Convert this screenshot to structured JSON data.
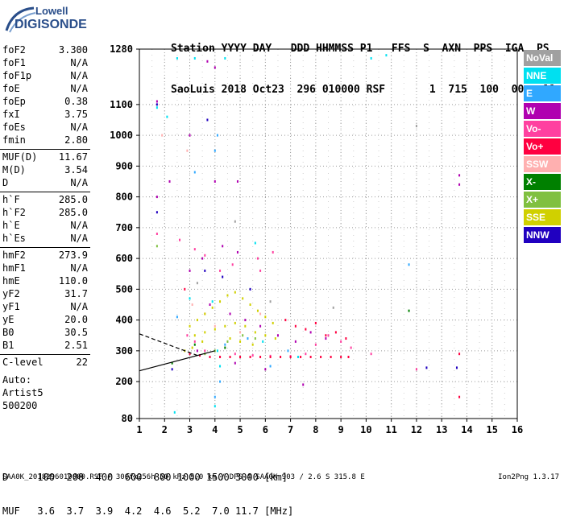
{
  "logo": {
    "top": "Lowell",
    "main": "DIGISONDE"
  },
  "header": {
    "line1": "Station YYYY DAY   DDD HHMMSS P1   FFS  S  AXN  PPS  IGA  PS",
    "line2": "SaoLuis 2018 Oct23  296 010000 RSF       1  715  100  00-  11"
  },
  "scaled_params": [
    {
      "k": "foF2",
      "v": "3.300"
    },
    {
      "k": "foF1",
      "v": "N/A"
    },
    {
      "k": "foF1p",
      "v": "N/A"
    },
    {
      "k": "foE",
      "v": "N/A"
    },
    {
      "k": "foEp",
      "v": "0.38"
    },
    {
      "k": "fxI",
      "v": "3.75"
    },
    {
      "k": "foEs",
      "v": "N/A"
    },
    {
      "k": "fmin",
      "v": "2.80"
    },
    {
      "k": "MUF(D)",
      "v": "11.67"
    },
    {
      "k": "M(D)",
      "v": "3.54"
    },
    {
      "k": "D",
      "v": "N/A"
    },
    {
      "k": "h`F",
      "v": "285.0"
    },
    {
      "k": "h`F2",
      "v": "285.0"
    },
    {
      "k": "h`E",
      "v": "N/A"
    },
    {
      "k": "h`Es",
      "v": "N/A"
    },
    {
      "k": "hmF2",
      "v": "273.9"
    },
    {
      "k": "hmF1",
      "v": "N/A"
    },
    {
      "k": "hmE",
      "v": "110.0"
    },
    {
      "k": "yF2",
      "v": "31.7"
    },
    {
      "k": "yF1",
      "v": "N/A"
    },
    {
      "k": "yE",
      "v": "20.0"
    },
    {
      "k": "B0",
      "v": "30.5"
    },
    {
      "k": "B1",
      "v": "2.51"
    },
    {
      "k": "C-level",
      "v": "22"
    }
  ],
  "auto_block": {
    "line1": "Auto:",
    "line2": "Artist5",
    "line3": "500200"
  },
  "legend": [
    {
      "label": "NoVal",
      "color": "#a0a0a0"
    },
    {
      "label": "NNE",
      "color": "#00e0f0"
    },
    {
      "label": "E",
      "color": "#30a8ff"
    },
    {
      "label": "W",
      "color": "#b000b0"
    },
    {
      "label": "Vo-",
      "color": "#ff40a0"
    },
    {
      "label": "Vo+",
      "color": "#ff0040"
    },
    {
      "label": "SSW",
      "color": "#ffb0b0"
    },
    {
      "label": "X-",
      "color": "#008000"
    },
    {
      "label": "X+",
      "color": "#80c040"
    },
    {
      "label": "SSE",
      "color": "#d0d000"
    },
    {
      "label": "NNW",
      "color": "#2000c0"
    }
  ],
  "muf_table": {
    "line1": "D     100  200  400  600  800 1000 1500 3000 [km]",
    "line2": "MUF   3.6  3.7  3.9  4.2  4.6  5.2  7.0 11.7 [MHz]"
  },
  "footer": {
    "left": "SAA0K_2018296010000.RSF / 300fx256h 50 kHz 5.0 km / DPS-4 SAA0K 903 / 2.6 S 315.8 E",
    "right": "Ion2Png 1.3.17"
  },
  "chart_data": {
    "type": "scatter",
    "title": "",
    "xlabel": "",
    "ylabel": "",
    "x_ticks": [
      1,
      2,
      3,
      4,
      5,
      6,
      7,
      8,
      9,
      10,
      11,
      12,
      13,
      14,
      15,
      16
    ],
    "y_ticks": [
      80,
      200,
      300,
      400,
      500,
      600,
      700,
      800,
      900,
      1000,
      1100,
      1280
    ],
    "xlim": [
      1,
      16
    ],
    "ylim": [
      80,
      1280
    ],
    "grid": true,
    "series": [
      {
        "name": "NNE",
        "color": "#00e0f0",
        "points": [
          [
            1.7,
            1090
          ],
          [
            2.1,
            1060
          ],
          [
            2.5,
            1250
          ],
          [
            3.2,
            1250
          ],
          [
            4.4,
            1250
          ],
          [
            10.2,
            1250
          ],
          [
            10.8,
            1260
          ],
          [
            3.0,
            470
          ],
          [
            4.1,
            300
          ],
          [
            4.2,
            250
          ],
          [
            4.0,
            120
          ],
          [
            2.4,
            100
          ],
          [
            3.9,
            460
          ],
          [
            5.6,
            650
          ],
          [
            5.9,
            330
          ],
          [
            7.3,
            280
          ]
        ]
      },
      {
        "name": "E",
        "color": "#30a8ff",
        "points": [
          [
            4.0,
            950
          ],
          [
            4.1,
            1000
          ],
          [
            3.2,
            880
          ],
          [
            2.5,
            410
          ],
          [
            6.9,
            300
          ],
          [
            11.7,
            580
          ],
          [
            4.0,
            150
          ],
          [
            4.2,
            200
          ],
          [
            4.4,
            320
          ],
          [
            5.3,
            340
          ],
          [
            6.2,
            250
          ]
        ]
      },
      {
        "name": "W",
        "color": "#b000b0",
        "points": [
          [
            3.7,
            1240
          ],
          [
            1.7,
            1110
          ],
          [
            3.0,
            1000
          ],
          [
            4.0,
            1220
          ],
          [
            1.7,
            800
          ],
          [
            2.2,
            850
          ],
          [
            4.0,
            850
          ],
          [
            4.9,
            850
          ],
          [
            13.7,
            870
          ],
          [
            13.7,
            840
          ],
          [
            3.0,
            560
          ],
          [
            3.5,
            600
          ],
          [
            4.3,
            640
          ],
          [
            4.9,
            620
          ],
          [
            3.8,
            450
          ],
          [
            4.6,
            420
          ],
          [
            5.2,
            400
          ],
          [
            5.8,
            380
          ],
          [
            6.5,
            350
          ],
          [
            7.2,
            330
          ],
          [
            7.8,
            360
          ],
          [
            8.4,
            340
          ],
          [
            3.3,
            300
          ],
          [
            4.8,
            260
          ],
          [
            6.0,
            240
          ],
          [
            7.5,
            190
          ]
        ]
      },
      {
        "name": "Vo-",
        "color": "#ff40a0",
        "points": [
          [
            1.7,
            680
          ],
          [
            2.6,
            660
          ],
          [
            3.2,
            630
          ],
          [
            3.6,
            610
          ],
          [
            4.2,
            560
          ],
          [
            4.7,
            580
          ],
          [
            5.7,
            600
          ],
          [
            5.8,
            560
          ],
          [
            6.3,
            620
          ],
          [
            2.9,
            350
          ],
          [
            3.2,
            330
          ],
          [
            3.6,
            300
          ],
          [
            4.2,
            280
          ],
          [
            4.8,
            290
          ],
          [
            5.5,
            285
          ],
          [
            6.2,
            283
          ],
          [
            7.0,
            282
          ],
          [
            7.6,
            290
          ],
          [
            8.0,
            320
          ],
          [
            8.5,
            350
          ],
          [
            9.0,
            330
          ],
          [
            9.4,
            310
          ],
          [
            10.2,
            290
          ],
          [
            12.0,
            240
          ]
        ]
      },
      {
        "name": "Vo+",
        "color": "#ff0040",
        "points": [
          [
            3.0,
            290
          ],
          [
            3.4,
            285
          ],
          [
            3.8,
            280
          ],
          [
            4.2,
            280
          ],
          [
            4.6,
            280
          ],
          [
            5.0,
            280
          ],
          [
            5.4,
            280
          ],
          [
            5.8,
            280
          ],
          [
            6.2,
            280
          ],
          [
            6.6,
            280
          ],
          [
            7.0,
            280
          ],
          [
            7.4,
            280
          ],
          [
            7.8,
            280
          ],
          [
            8.2,
            280
          ],
          [
            8.6,
            280
          ],
          [
            9.0,
            280
          ],
          [
            9.3,
            280
          ],
          [
            6.8,
            400
          ],
          [
            7.2,
            380
          ],
          [
            7.6,
            370
          ],
          [
            8.0,
            390
          ],
          [
            8.4,
            350
          ],
          [
            8.8,
            360
          ],
          [
            9.2,
            340
          ],
          [
            13.7,
            290
          ],
          [
            13.7,
            150
          ],
          [
            2.8,
            500
          ]
        ]
      },
      {
        "name": "SSW",
        "color": "#ffb0b0",
        "points": [
          [
            1.9,
            1000
          ],
          [
            2.9,
            950
          ],
          [
            3.1,
            450
          ],
          [
            3.6,
            420
          ],
          [
            4.0,
            380
          ],
          [
            5.0,
            360
          ],
          [
            5.8,
            420
          ]
        ]
      },
      {
        "name": "X-",
        "color": "#008000",
        "points": [
          [
            11.7,
            430
          ],
          [
            3.2,
            320
          ],
          [
            2.3,
            260
          ],
          [
            4.4,
            310
          ]
        ]
      },
      {
        "name": "X+",
        "color": "#80c040",
        "points": [
          [
            1.7,
            640
          ],
          [
            3.6,
            290
          ],
          [
            4.0,
            300
          ],
          [
            4.5,
            330
          ],
          [
            5.1,
            350
          ],
          [
            5.6,
            340
          ]
        ]
      },
      {
        "name": "SSE",
        "color": "#d0d000",
        "points": [
          [
            3.0,
            380
          ],
          [
            3.3,
            400
          ],
          [
            3.6,
            420
          ],
          [
            3.9,
            440
          ],
          [
            4.2,
            460
          ],
          [
            4.5,
            480
          ],
          [
            4.8,
            490
          ],
          [
            5.1,
            470
          ],
          [
            5.4,
            450
          ],
          [
            5.7,
            430
          ],
          [
            6.0,
            410
          ],
          [
            6.3,
            390
          ],
          [
            3.2,
            350
          ],
          [
            3.6,
            360
          ],
          [
            4.0,
            370
          ],
          [
            4.4,
            380
          ],
          [
            4.8,
            390
          ],
          [
            5.2,
            380
          ],
          [
            5.6,
            360
          ],
          [
            6.0,
            350
          ],
          [
            6.4,
            340
          ],
          [
            2.8,
            300
          ],
          [
            3.1,
            310
          ],
          [
            3.5,
            330
          ],
          [
            4.6,
            340
          ],
          [
            5.0,
            330
          ],
          [
            5.5,
            320
          ]
        ]
      },
      {
        "name": "NNW",
        "color": "#2000c0",
        "points": [
          [
            1.7,
            1100
          ],
          [
            3.7,
            1050
          ],
          [
            1.7,
            750
          ],
          [
            3.6,
            560
          ],
          [
            4.3,
            540
          ],
          [
            5.4,
            500
          ],
          [
            12.4,
            245
          ],
          [
            13.6,
            245
          ],
          [
            2.3,
            240
          ]
        ]
      },
      {
        "name": "NoVal",
        "color": "#a0a0a0",
        "points": [
          [
            12.0,
            1030
          ],
          [
            4.8,
            720
          ],
          [
            3.3,
            520
          ],
          [
            6.2,
            460
          ],
          [
            8.7,
            440
          ]
        ]
      }
    ],
    "trace_lines": [
      {
        "style": "dashed",
        "points": [
          [
            1.0,
            355
          ],
          [
            3.3,
            285
          ]
        ]
      },
      {
        "style": "solid",
        "points": [
          [
            1.0,
            235
          ],
          [
            4.0,
            300
          ]
        ]
      }
    ]
  }
}
